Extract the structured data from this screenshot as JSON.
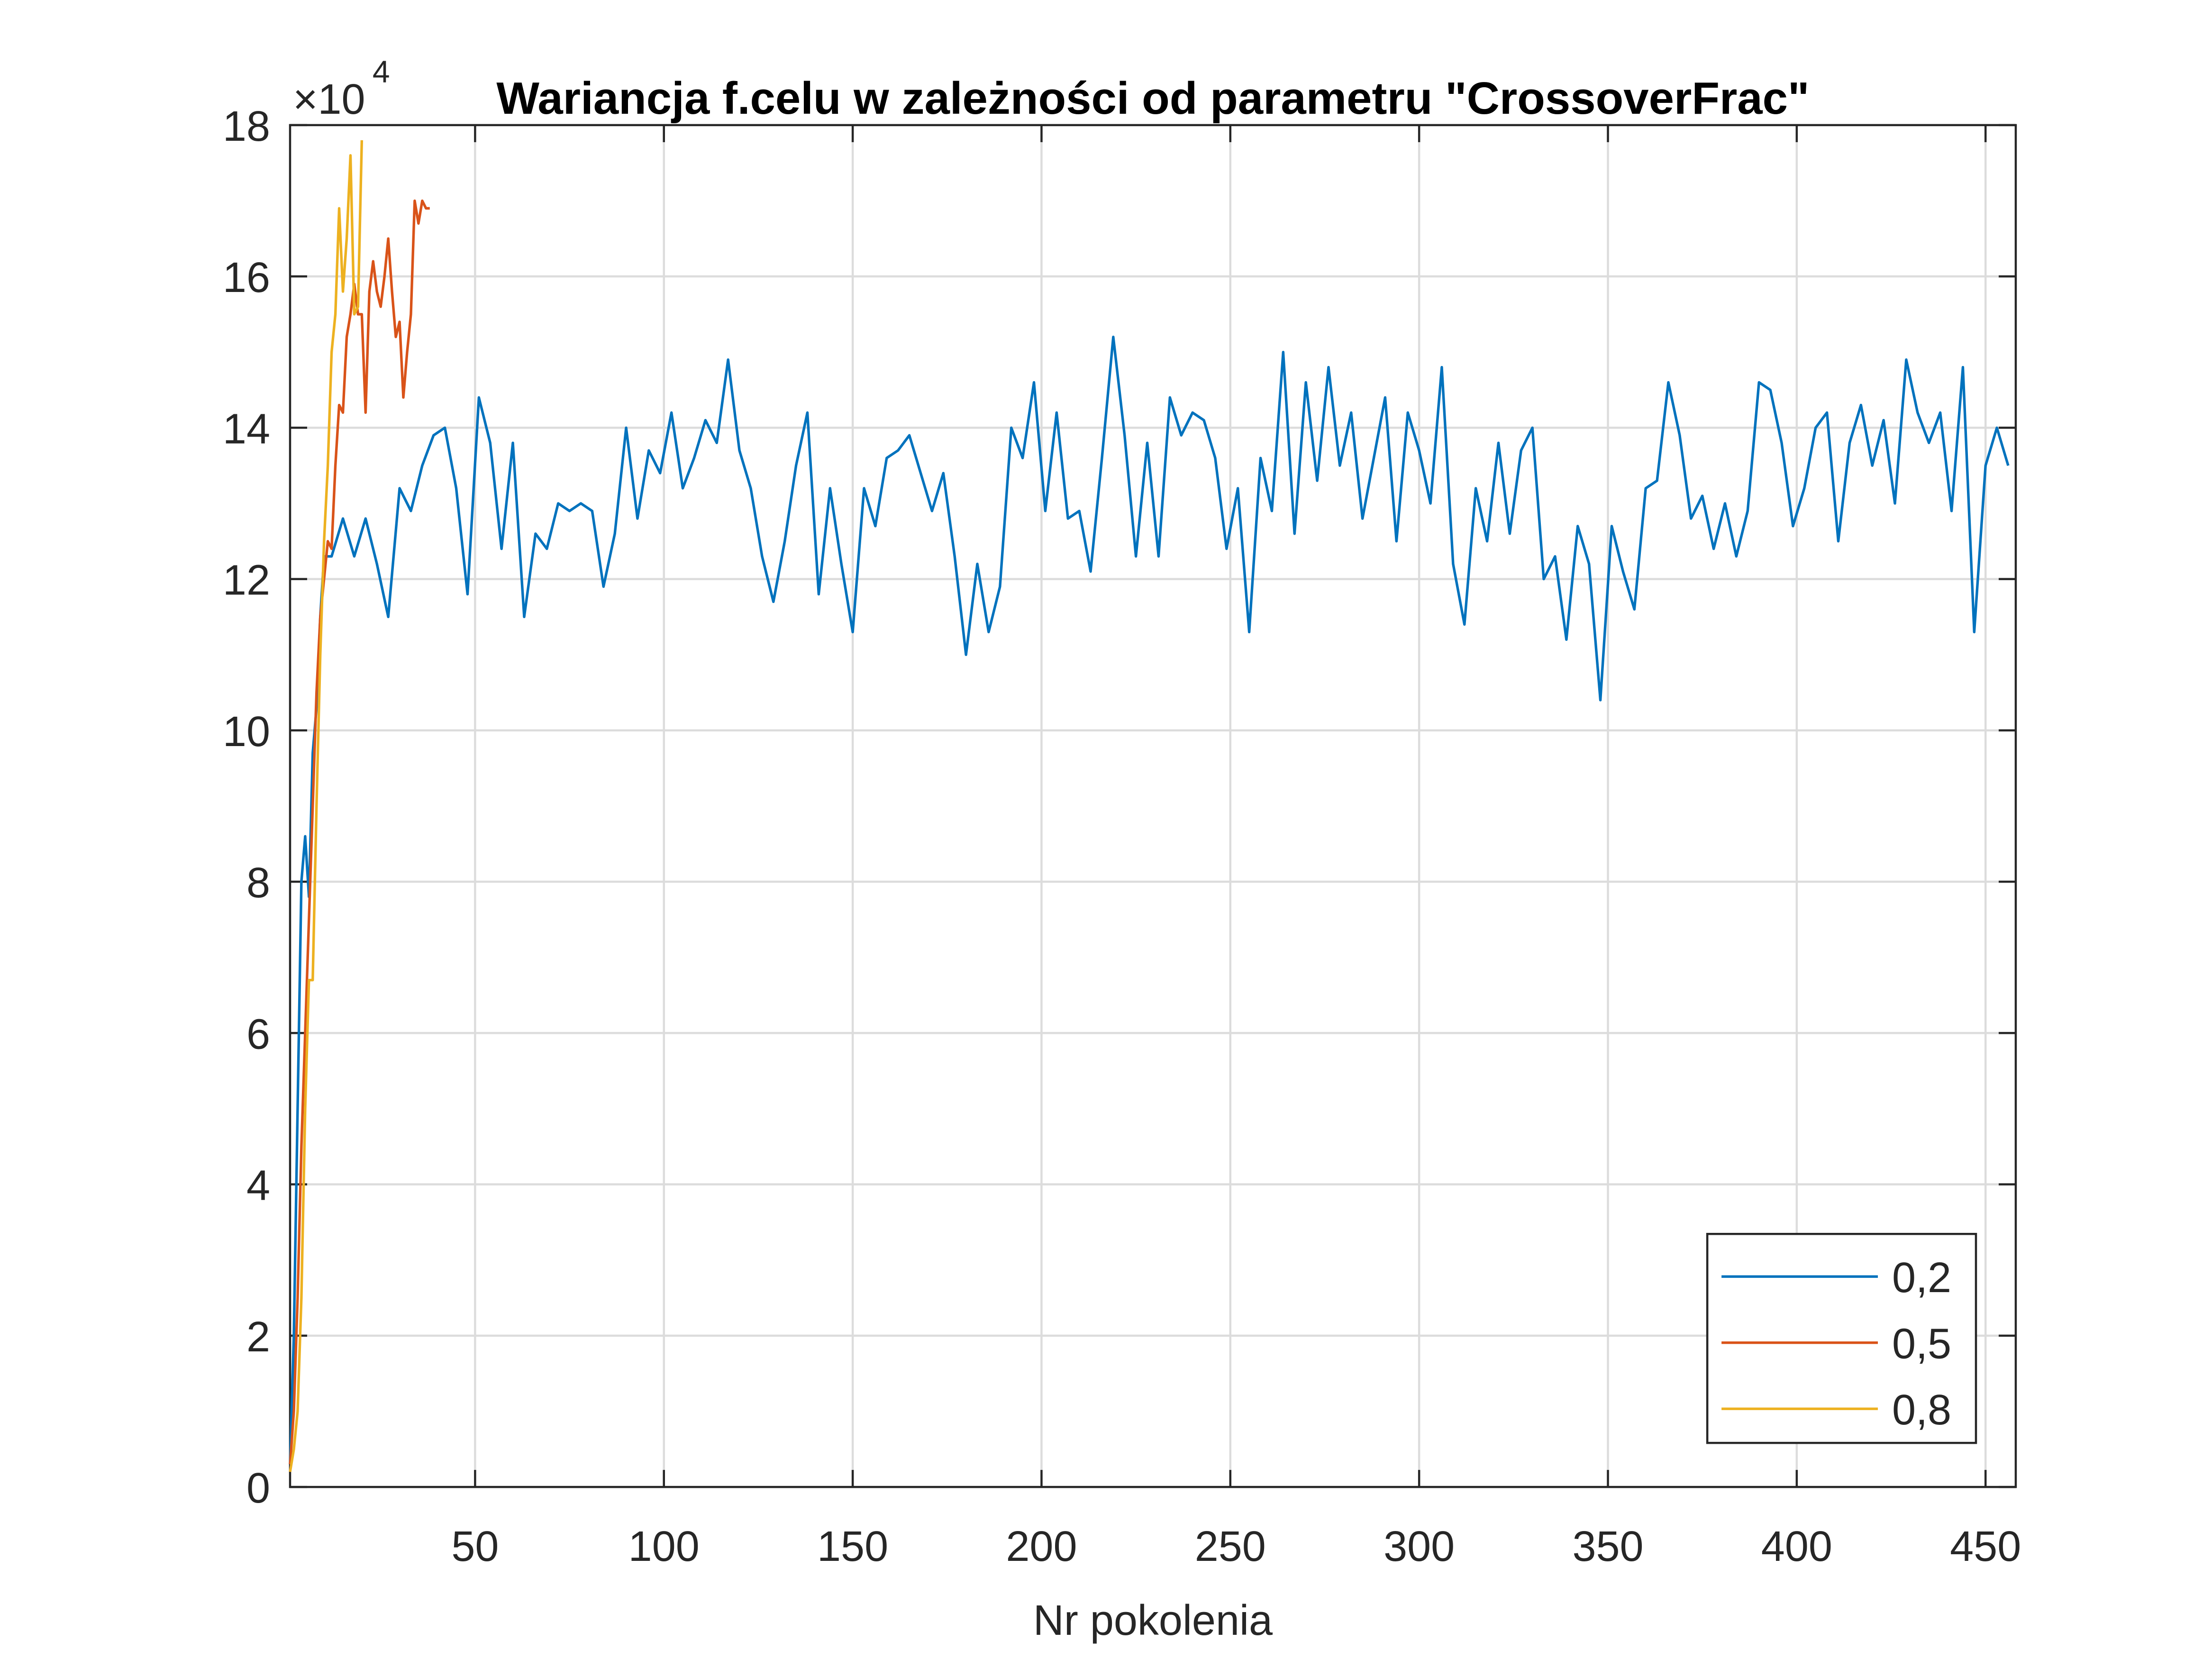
{
  "chart_data": {
    "type": "line",
    "title": "Wariancja f.celu w zależności od parametru \"CrossoverFrac\"",
    "xlabel": "Nr pokolenia",
    "y_multiplier": "×10",
    "y_multiplier_exponent": "4",
    "xlim": [
      1,
      458
    ],
    "xticks": [
      50,
      100,
      150,
      200,
      250,
      300,
      350,
      400,
      450
    ],
    "ylim": [
      0,
      18
    ],
    "yticks": [
      0,
      2,
      4,
      6,
      8,
      10,
      12,
      14,
      16,
      18
    ],
    "grid": true,
    "legend": "lower right",
    "series": [
      {
        "name": "0,2",
        "color": "#0072BD",
        "x": [
          1,
          2,
          3,
          4,
          5,
          6,
          7,
          8,
          9,
          10,
          12,
          15,
          18,
          21,
          24,
          27,
          30,
          33,
          36,
          39,
          42,
          45,
          48,
          51,
          54,
          57,
          60,
          63,
          66,
          69,
          72,
          75,
          78,
          81,
          84,
          87,
          90,
          93,
          96,
          99,
          102,
          105,
          108,
          111,
          114,
          117,
          120,
          123,
          126,
          129,
          132,
          135,
          138,
          141,
          144,
          147,
          150,
          153,
          156,
          159,
          162,
          165,
          168,
          171,
          174,
          177,
          180,
          183,
          186,
          189,
          192,
          195,
          198,
          201,
          204,
          207,
          210,
          213,
          216,
          219,
          222,
          225,
          228,
          231,
          234,
          237,
          240,
          243,
          246,
          249,
          252,
          255,
          258,
          261,
          264,
          267,
          270,
          273,
          276,
          279,
          282,
          285,
          288,
          291,
          294,
          297,
          300,
          303,
          306,
          309,
          312,
          315,
          318,
          321,
          324,
          327,
          330,
          333,
          336,
          339,
          342,
          345,
          348,
          351,
          354,
          357,
          360,
          363,
          366,
          369,
          372,
          375,
          378,
          381,
          384,
          387,
          390,
          393,
          396,
          399,
          402,
          405,
          408,
          411,
          414,
          417,
          420,
          423,
          426,
          429,
          432,
          435,
          438,
          441,
          444,
          447,
          450,
          453,
          456
        ],
        "values": [
          0.3,
          2,
          5,
          8,
          8.6,
          7.8,
          9.7,
          10.3,
          11.5,
          12.3,
          12.3,
          12.8,
          12.3,
          12.8,
          12.2,
          11.5,
          13.2,
          12.9,
          13.5,
          13.9,
          14.0,
          13.2,
          11.8,
          14.4,
          13.8,
          12.4,
          13.8,
          11.5,
          12.6,
          12.4,
          13.0,
          12.9,
          13.0,
          12.9,
          11.9,
          12.6,
          14.0,
          12.8,
          13.7,
          13.4,
          14.2,
          13.2,
          13.6,
          14.1,
          13.8,
          14.9,
          13.7,
          13.2,
          12.3,
          11.7,
          12.5,
          13.5,
          14.2,
          11.8,
          13.2,
          12.2,
          11.3,
          13.2,
          12.7,
          13.6,
          13.7,
          13.9,
          13.4,
          12.9,
          13.4,
          12.3,
          11.0,
          12.2,
          11.3,
          11.9,
          14.0,
          13.6,
          14.6,
          12.9,
          14.2,
          12.8,
          12.9,
          12.1,
          13.6,
          15.2,
          13.9,
          12.3,
          13.8,
          12.3,
          14.4,
          13.9,
          14.2,
          14.1,
          13.6,
          12.4,
          13.2,
          11.3,
          13.6,
          12.9,
          15.0,
          12.6,
          14.6,
          13.3,
          14.8,
          13.5,
          14.2,
          12.8,
          13.6,
          14.4,
          12.5,
          14.2,
          13.7,
          13.0,
          14.8,
          12.2,
          11.4,
          13.2,
          12.5,
          13.8,
          12.6,
          13.7,
          14.0,
          12.0,
          12.3,
          11.2,
          12.7,
          12.2,
          10.4,
          12.7,
          12.1,
          11.6,
          13.2,
          13.3,
          14.6,
          13.9,
          12.8,
          13.1,
          12.4,
          13.0,
          12.3,
          12.9,
          14.6,
          14.5,
          13.8,
          12.7,
          13.2,
          14.0,
          14.2,
          12.5,
          13.8,
          14.3,
          13.5,
          14.1,
          13.0,
          14.9,
          14.2,
          13.8,
          14.2,
          12.9,
          14.8,
          11.3,
          13.5,
          14.0,
          13.5
        ]
      },
      {
        "name": "0,5",
        "color": "#D95319",
        "x": [
          1,
          2,
          3,
          4,
          5,
          6,
          7,
          8,
          9,
          10,
          11,
          12,
          13,
          14,
          15,
          16,
          17,
          18,
          19,
          20,
          21,
          22,
          23,
          24,
          25,
          26,
          27,
          28,
          29,
          30,
          31,
          32,
          33,
          34,
          35,
          36,
          37,
          38
        ],
        "values": [
          0.3,
          1,
          2.5,
          4.5,
          6,
          7.5,
          9,
          10.5,
          11.5,
          12,
          12.5,
          12.4,
          13.5,
          14.3,
          14.2,
          15.2,
          15.5,
          15.9,
          15.5,
          15.5,
          14.2,
          15.8,
          16.2,
          15.8,
          15.6,
          16,
          16.5,
          15.8,
          15.2,
          15.4,
          14.4,
          15,
          15.5,
          17,
          16.7,
          17,
          16.9,
          16.9
        ]
      },
      {
        "name": "0,8",
        "color": "#EDB120",
        "x": [
          1,
          2,
          3,
          4,
          5,
          6,
          7,
          8,
          9,
          10,
          11,
          12,
          13,
          14,
          15,
          16,
          17,
          18,
          19,
          20
        ],
        "values": [
          0.2,
          0.5,
          1,
          2.5,
          5,
          6.7,
          6.7,
          9,
          11,
          12.5,
          13.5,
          15,
          15.5,
          16.9,
          15.8,
          16.5,
          17.6,
          15.5,
          15.6,
          17.8
        ]
      }
    ]
  }
}
